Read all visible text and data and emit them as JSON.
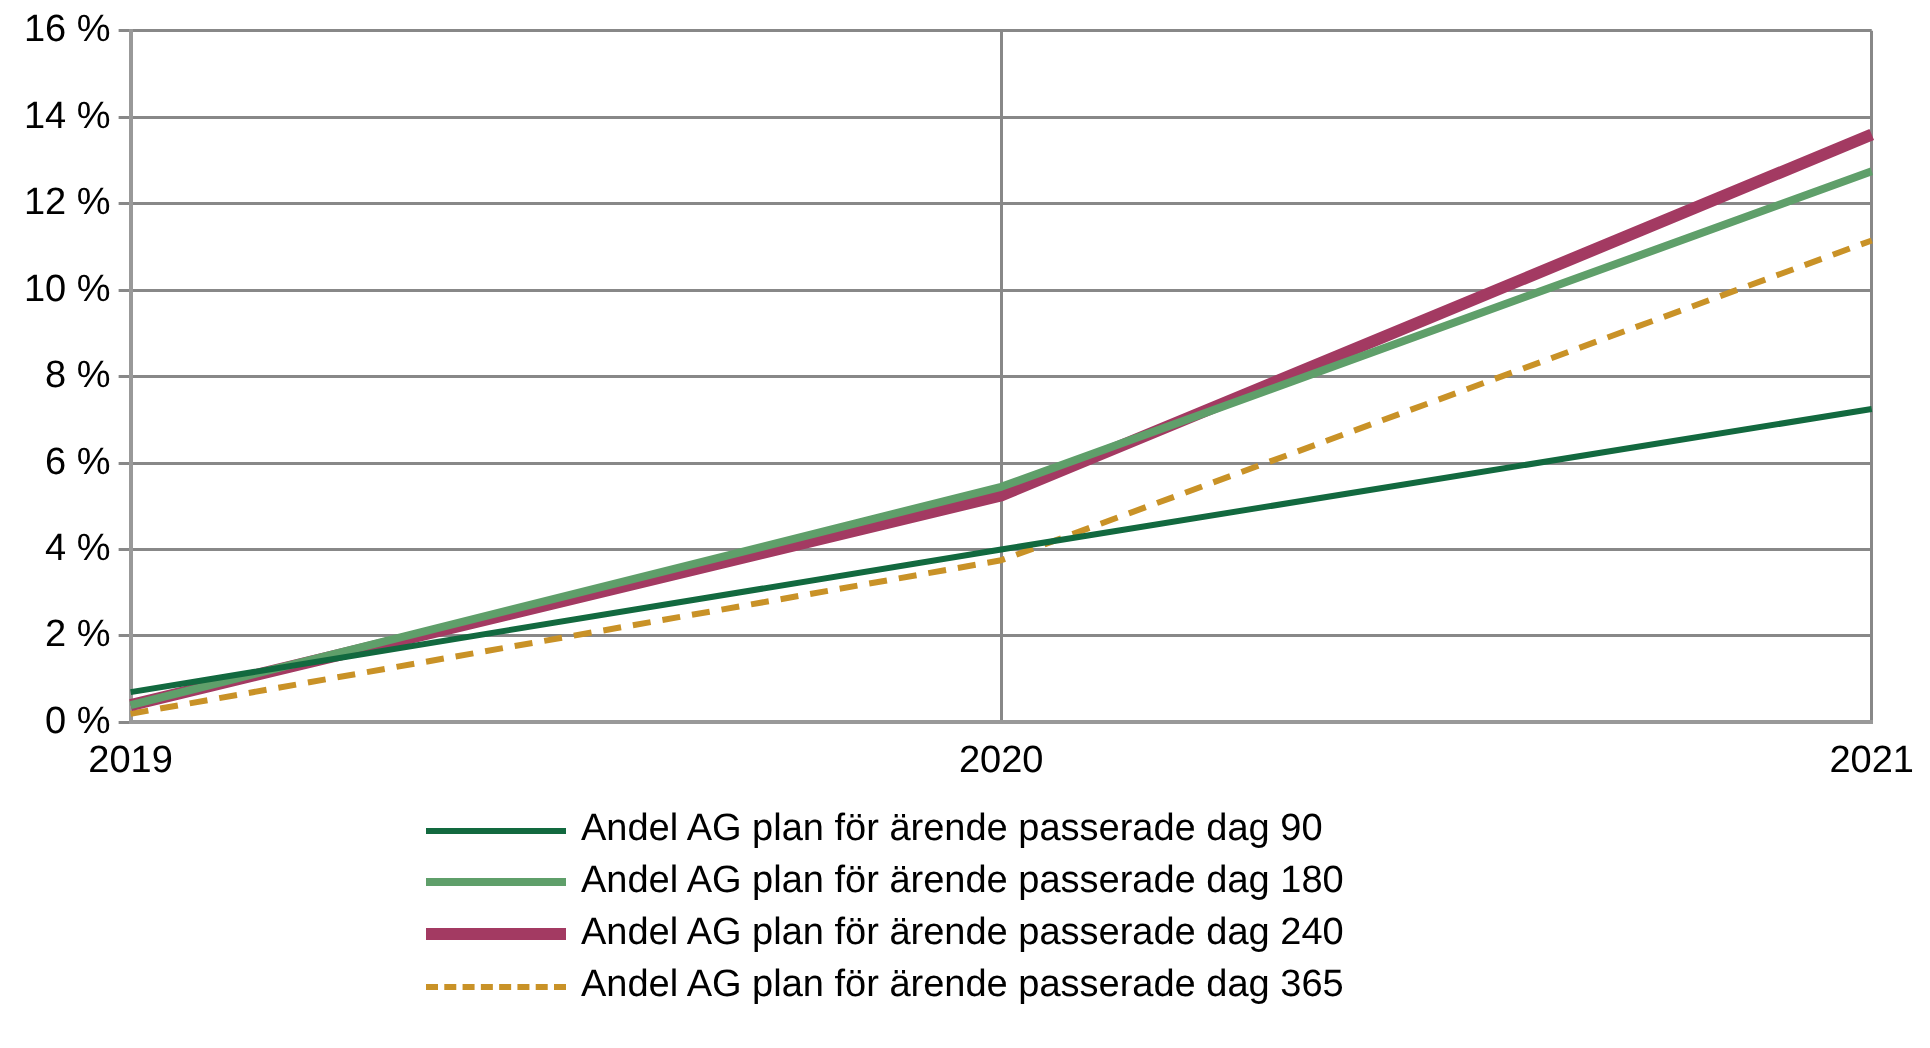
{
  "chart_data": {
    "type": "line",
    "categories": [
      "2019",
      "2020",
      "2021"
    ],
    "series": [
      {
        "name": "Andel AG plan för ärende passerade dag 90",
        "color": "#12693f",
        "values": [
          0.7,
          4.0,
          7.25
        ],
        "line_style": "solid"
      },
      {
        "name": "Andel AG plan för ärende passerade dag 180",
        "color": "#5f9f6a",
        "values": [
          0.4,
          5.45,
          12.75
        ],
        "line_style": "solid"
      },
      {
        "name": "Andel AG plan för ärende passerade dag 240",
        "color": "#a33a62",
        "values": [
          0.4,
          5.25,
          13.6
        ],
        "line_style": "solid"
      },
      {
        "name": "Andel AG plan för ärende passerade dag 365",
        "color": "#c99227",
        "values": [
          0.2,
          3.75,
          11.15
        ],
        "line_style": "dashed"
      }
    ],
    "ylim": [
      0,
      16
    ],
    "yticks": [
      {
        "value": 0,
        "label": "0 %"
      },
      {
        "value": 2,
        "label": "2 %"
      },
      {
        "value": 4,
        "label": "4 %"
      },
      {
        "value": 6,
        "label": "6 %"
      },
      {
        "value": 8,
        "label": "8 %"
      },
      {
        "value": 10,
        "label": "10 %"
      },
      {
        "value": 12,
        "label": "12 %"
      },
      {
        "value": 14,
        "label": "14 %"
      },
      {
        "value": 16,
        "label": "16 %"
      }
    ],
    "grid": true,
    "legend": "bottom",
    "marker": "none"
  }
}
